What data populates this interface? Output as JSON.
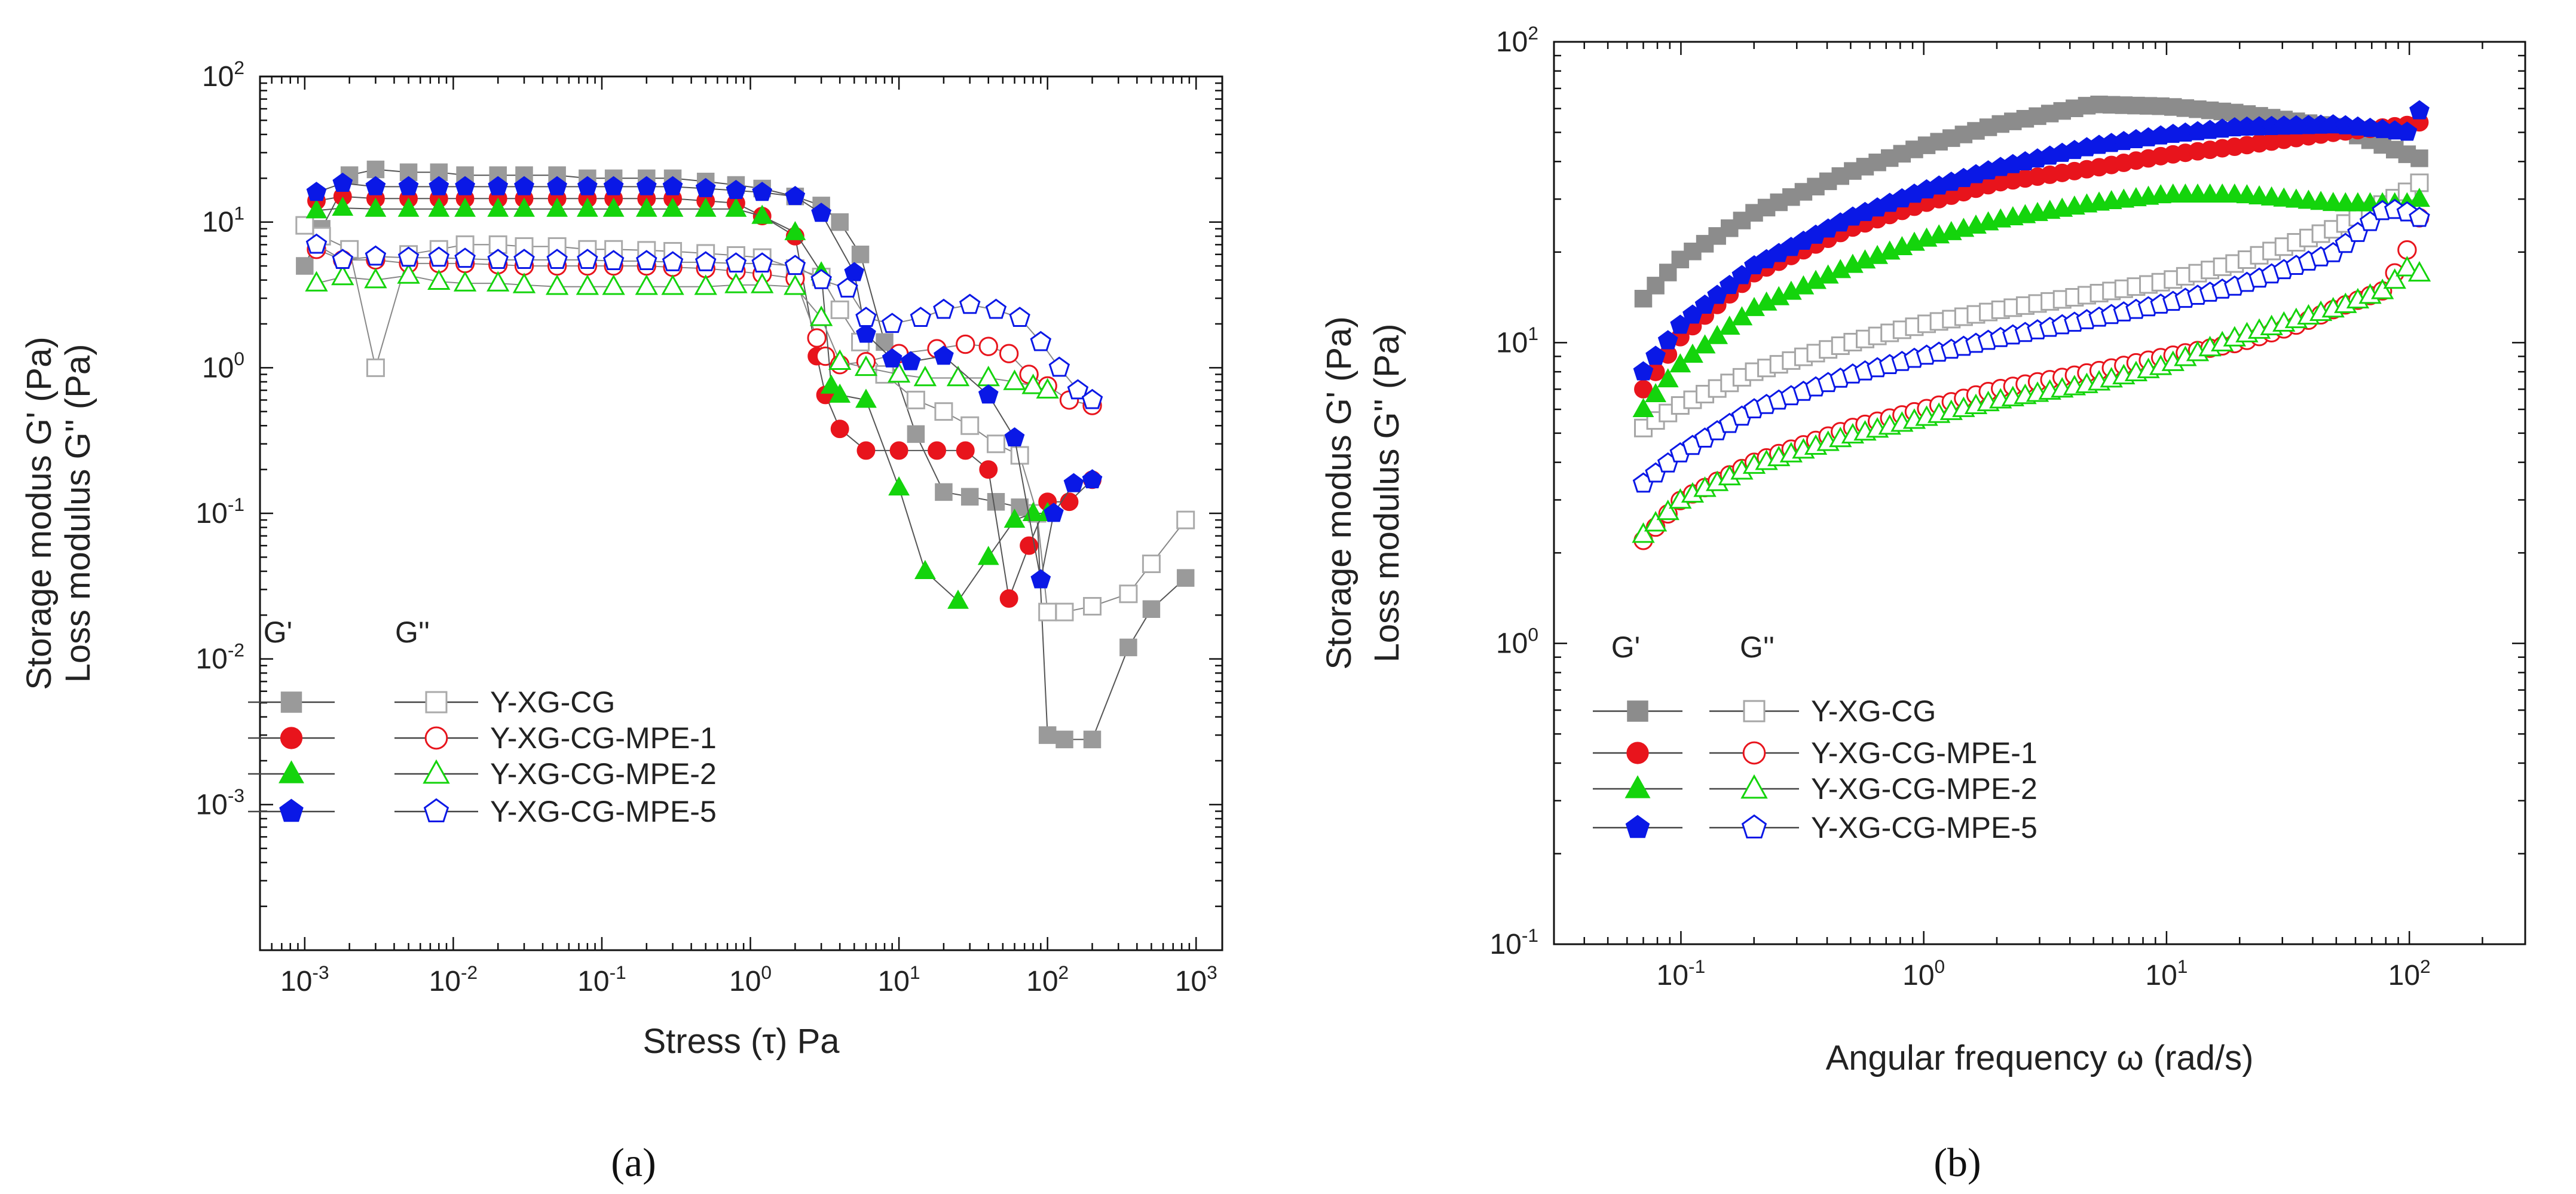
{
  "figure": {
    "panels": [
      "(a)",
      "(b)"
    ]
  },
  "chart_data": [
    {
      "type": "scatter",
      "panel_label": "(a)",
      "xscale": "log",
      "yscale": "log",
      "xlim": [
        0.0005,
        1500
      ],
      "ylim": [
        0.0001,
        100
      ],
      "xlabel": "Stress (τ) Pa",
      "ylabel_line1": "Storage modus G' (Pa)",
      "ylabel_line2": "Loss modulus G'' (Pa)",
      "xticks": [
        0.001,
        0.01,
        0.1,
        1,
        10,
        100,
        1000
      ],
      "xtick_labels": [
        {
          "base": "10",
          "exp": "-3"
        },
        {
          "base": "10",
          "exp": "-2"
        },
        {
          "base": "10",
          "exp": "-1"
        },
        {
          "base": "10",
          "exp": "0"
        },
        {
          "base": "10",
          "exp": "1"
        },
        {
          "base": "10",
          "exp": "2"
        },
        {
          "base": "10",
          "exp": "3"
        }
      ],
      "yticks": [
        0.001,
        0.01,
        0.1,
        1,
        10,
        100
      ],
      "ytick_labels": [
        {
          "base": "10",
          "exp": "-3"
        },
        {
          "base": "10",
          "exp": "-2"
        },
        {
          "base": "10",
          "exp": "-1"
        },
        {
          "base": "10",
          "exp": "0"
        },
        {
          "base": "10",
          "exp": "1"
        },
        {
          "base": "10",
          "exp": "2"
        }
      ],
      "legend": {
        "position": "lower-left",
        "header_g1": "G'",
        "header_g2": "G''",
        "entries": [
          "Y-XG-CG",
          "Y-XG-CG-MPE-1",
          "Y-XG-CG-MPE-2",
          "Y-XG-CG-MPE-5"
        ]
      },
      "series": [
        {
          "name": "Y-XG-CG G'",
          "color": "#9a9a9a",
          "marker": "square",
          "filled": true,
          "x": [
            0.001,
            0.0013,
            0.002,
            0.003,
            0.005,
            0.008,
            0.012,
            0.02,
            0.03,
            0.05,
            0.08,
            0.12,
            0.2,
            0.3,
            0.5,
            0.8,
            1.2,
            2,
            3,
            4,
            5.5,
            8,
            13,
            20,
            30,
            45,
            65,
            85,
            100,
            130,
            200,
            350,
            500,
            850
          ],
          "y": [
            5,
            9,
            21,
            23,
            22,
            22,
            21,
            21,
            21,
            21,
            20,
            20,
            20,
            20,
            19,
            18,
            17,
            15,
            13,
            10,
            6,
            1.5,
            0.35,
            0.14,
            0.13,
            0.12,
            0.11,
            0.1,
            0.003,
            0.0028,
            0.0028,
            0.012,
            0.022,
            0.036
          ]
        },
        {
          "name": "Y-XG-CG G''",
          "color": "#aaaaaa",
          "marker": "square",
          "filled": false,
          "x": [
            0.001,
            0.0013,
            0.002,
            0.003,
            0.005,
            0.008,
            0.012,
            0.02,
            0.03,
            0.05,
            0.08,
            0.12,
            0.2,
            0.3,
            0.5,
            0.8,
            1.2,
            2,
            3,
            4,
            5.5,
            8,
            13,
            20,
            30,
            45,
            65,
            85,
            100,
            130,
            200,
            350,
            500,
            850
          ],
          "y": [
            9.5,
            8,
            6.5,
            1,
            6,
            6.5,
            7,
            7,
            6.8,
            6.8,
            6.5,
            6.5,
            6.4,
            6.3,
            6.1,
            5.9,
            5.7,
            4.8,
            4.2,
            2.5,
            1.5,
            0.9,
            0.6,
            0.5,
            0.4,
            0.3,
            0.25,
            0.1,
            0.021,
            0.021,
            0.023,
            0.028,
            0.045,
            0.09
          ]
        },
        {
          "name": "Y-XG-CG-MPE-1 G'",
          "color": "#e8141c",
          "marker": "circle",
          "filled": true,
          "x": [
            0.0012,
            0.0018,
            0.003,
            0.005,
            0.008,
            0.012,
            0.02,
            0.03,
            0.05,
            0.08,
            0.12,
            0.2,
            0.3,
            0.5,
            0.8,
            1.2,
            2,
            2.8,
            3.2,
            4,
            6,
            10,
            18,
            28,
            40,
            55,
            75,
            100,
            140,
            200
          ],
          "y": [
            14,
            15,
            14.5,
            14.5,
            14.5,
            14.5,
            14.5,
            14.5,
            14.5,
            14.5,
            14.5,
            14.5,
            14.5,
            14,
            13.5,
            11,
            8,
            1.2,
            0.65,
            0.38,
            0.27,
            0.27,
            0.27,
            0.27,
            0.2,
            0.026,
            0.06,
            0.12,
            0.12,
            0.17
          ]
        },
        {
          "name": "Y-XG-CG-MPE-1 G''",
          "color": "#e8141c",
          "marker": "circle",
          "filled": false,
          "x": [
            0.0012,
            0.0018,
            0.003,
            0.005,
            0.008,
            0.012,
            0.02,
            0.03,
            0.05,
            0.08,
            0.12,
            0.2,
            0.3,
            0.5,
            0.8,
            1.2,
            2,
            2.8,
            3.2,
            4,
            6,
            10,
            18,
            28,
            40,
            55,
            75,
            100,
            140,
            200
          ],
          "y": [
            6.5,
            5.5,
            5.5,
            5.2,
            5.2,
            5.2,
            5.1,
            5,
            5,
            5,
            5,
            5,
            4.9,
            4.8,
            4.6,
            4.4,
            4.1,
            1.6,
            1.2,
            1.05,
            1.1,
            1.25,
            1.35,
            1.45,
            1.4,
            1.25,
            0.9,
            0.75,
            0.6,
            0.55
          ]
        },
        {
          "name": "Y-XG-CG-MPE-2 G'",
          "color": "#14d40c",
          "marker": "triangle",
          "filled": true,
          "x": [
            0.0012,
            0.0018,
            0.003,
            0.005,
            0.008,
            0.012,
            0.02,
            0.03,
            0.05,
            0.08,
            0.12,
            0.2,
            0.3,
            0.5,
            0.8,
            1.2,
            2,
            3,
            3.5,
            4,
            6,
            10,
            15,
            25,
            40,
            60,
            80,
            100
          ],
          "y": [
            12,
            12.5,
            12.3,
            12.3,
            12.3,
            12.3,
            12.3,
            12.3,
            12.3,
            12.3,
            12.3,
            12.3,
            12.3,
            12.3,
            12.3,
            11,
            8.5,
            4.5,
            0.75,
            0.65,
            0.6,
            0.15,
            0.04,
            0.025,
            0.05,
            0.09,
            0.1,
            0.1
          ]
        },
        {
          "name": "Y-XG-CG-MPE-2 G''",
          "color": "#14d40c",
          "marker": "triangle",
          "filled": false,
          "x": [
            0.0012,
            0.0018,
            0.003,
            0.005,
            0.008,
            0.012,
            0.02,
            0.03,
            0.05,
            0.08,
            0.12,
            0.2,
            0.3,
            0.5,
            0.8,
            1.2,
            2,
            3,
            4,
            6,
            10,
            15,
            25,
            40,
            60,
            80,
            100
          ],
          "y": [
            3.8,
            4.2,
            4,
            4.3,
            3.9,
            3.8,
            3.8,
            3.7,
            3.6,
            3.6,
            3.6,
            3.6,
            3.6,
            3.6,
            3.7,
            3.7,
            3.6,
            2.2,
            1.1,
            1,
            0.9,
            0.85,
            0.85,
            0.85,
            0.8,
            0.75,
            0.7
          ]
        },
        {
          "name": "Y-XG-CG-MPE-5 G'",
          "color": "#0a18e6",
          "marker": "pentagon",
          "filled": true,
          "x": [
            0.0012,
            0.0018,
            0.003,
            0.005,
            0.008,
            0.012,
            0.02,
            0.03,
            0.05,
            0.08,
            0.12,
            0.2,
            0.3,
            0.5,
            0.8,
            1.2,
            2,
            3,
            5,
            6,
            9,
            12,
            20,
            40,
            60,
            90,
            110,
            150,
            200
          ],
          "y": [
            16,
            18.5,
            17.5,
            17.5,
            17.5,
            17.5,
            17.5,
            17.5,
            17.5,
            17.5,
            17.5,
            17.5,
            17.5,
            17,
            16.5,
            16,
            15,
            11.5,
            4.5,
            1.7,
            1.15,
            1.1,
            1.2,
            0.65,
            0.33,
            0.035,
            0.1,
            0.16,
            0.17
          ]
        },
        {
          "name": "Y-XG-CG-MPE-5 G''",
          "color": "#0a18e6",
          "marker": "pentagon",
          "filled": false,
          "x": [
            0.0012,
            0.0018,
            0.003,
            0.005,
            0.008,
            0.012,
            0.02,
            0.03,
            0.05,
            0.08,
            0.12,
            0.2,
            0.3,
            0.5,
            0.8,
            1.2,
            2,
            3,
            4.5,
            6,
            9,
            14,
            20,
            30,
            45,
            65,
            90,
            120,
            160,
            200
          ],
          "y": [
            7,
            5.5,
            5.8,
            5.7,
            5.7,
            5.6,
            5.5,
            5.5,
            5.5,
            5.5,
            5.4,
            5.4,
            5.3,
            5.3,
            5.2,
            5.2,
            5,
            4,
            3.5,
            2.2,
            2,
            2.2,
            2.5,
            2.7,
            2.5,
            2.2,
            1.5,
            1,
            0.7,
            0.6
          ]
        }
      ]
    },
    {
      "type": "scatter",
      "panel_label": "(b)",
      "xscale": "log",
      "yscale": "log",
      "xlim": [
        0.03,
        300
      ],
      "ylim": [
        0.1,
        100
      ],
      "xlabel": "Angular frequency ω (rad/s)",
      "ylabel_line1": "Storage modus G' (Pa)",
      "ylabel_line2": "Loss modulus G'' (Pa)",
      "xticks": [
        0.1,
        1,
        10,
        100
      ],
      "xtick_labels": [
        {
          "base": "10",
          "exp": "-1"
        },
        {
          "base": "10",
          "exp": "0"
        },
        {
          "base": "10",
          "exp": "1"
        },
        {
          "base": "10",
          "exp": "2"
        }
      ],
      "yticks": [
        0.1,
        1,
        10,
        100
      ],
      "ytick_labels": [
        {
          "base": "10",
          "exp": "-1"
        },
        {
          "base": "10",
          "exp": "0"
        },
        {
          "base": "10",
          "exp": "1"
        },
        {
          "base": "10",
          "exp": "2"
        }
      ],
      "legend": {
        "position": "lower-left",
        "header_g1": "G'",
        "header_g2": "G''",
        "entries": [
          "Y-XG-CG",
          "Y-XG-CG-MPE-1",
          "Y-XG-CG-MPE-2",
          "Y-XG-CG-MPE-5"
        ]
      },
      "series": [
        {
          "name": "Y-XG-CG G'",
          "color": "#8c8c8c",
          "marker": "square",
          "filled": true,
          "dense": true,
          "x": [
            0.07,
            0.1,
            0.2,
            0.5,
            1,
            2,
            5,
            10,
            20,
            50,
            100,
            110
          ],
          "y": [
            14,
            19,
            27,
            37,
            45,
            53,
            62,
            61,
            58,
            52,
            42,
            41
          ]
        },
        {
          "name": "Y-XG-CG G''",
          "color": "#a6a6a6",
          "marker": "square",
          "filled": false,
          "dense": true,
          "x": [
            0.07,
            0.1,
            0.2,
            0.5,
            1,
            2,
            5,
            10,
            20,
            50,
            100,
            110
          ],
          "y": [
            5.2,
            6.2,
            8,
            10,
            11.5,
            12.8,
            14.5,
            16,
            18.5,
            24,
            32,
            34
          ]
        },
        {
          "name": "Y-XG-CG-MPE-1 G'",
          "color": "#e8141c",
          "marker": "circle",
          "filled": true,
          "dense": true,
          "x": [
            0.07,
            0.1,
            0.2,
            0.5,
            1,
            2,
            5,
            10,
            20,
            50,
            100,
            110
          ],
          "y": [
            7,
            10.5,
            17,
            24,
            29,
            34,
            38,
            42,
            45,
            50,
            53,
            54
          ]
        },
        {
          "name": "Y-XG-CG-MPE-1 G''",
          "color": "#e8141c",
          "marker": "circle",
          "filled": false,
          "dense": true,
          "x": [
            0.07,
            0.1,
            0.2,
            0.5,
            1,
            2,
            5,
            10,
            20,
            35,
            50,
            80,
            100,
            110
          ],
          "y": [
            2.2,
            3,
            4,
            5.2,
            6,
            7,
            8,
            9,
            10,
            11.5,
            13,
            15,
            21,
            26
          ]
        },
        {
          "name": "Y-XG-CG-MPE-2 G'",
          "color": "#14d40c",
          "marker": "triangle",
          "filled": true,
          "dense": true,
          "x": [
            0.07,
            0.1,
            0.2,
            0.5,
            1,
            2,
            5,
            10,
            20,
            50,
            100,
            110
          ],
          "y": [
            6,
            8.5,
            13,
            18,
            22,
            25.5,
            29,
            31,
            31,
            29,
            29,
            30
          ]
        },
        {
          "name": "Y-XG-CG-MPE-2 G''",
          "color": "#14d40c",
          "marker": "triangle",
          "filled": false,
          "dense": true,
          "x": [
            0.07,
            0.1,
            0.2,
            0.5,
            1,
            2,
            5,
            10,
            20,
            50,
            80,
            100,
            110
          ],
          "y": [
            2.3,
            3,
            3.9,
            4.9,
            5.6,
            6.4,
            7.3,
            8.4,
            10.5,
            13,
            15,
            18,
            17
          ]
        },
        {
          "name": "Y-XG-CG-MPE-5 G'",
          "color": "#0a18e6",
          "marker": "pentagon",
          "filled": true,
          "dense": true,
          "x": [
            0.07,
            0.1,
            0.2,
            0.5,
            1,
            2,
            5,
            10,
            20,
            50,
            100,
            110
          ],
          "y": [
            8,
            11.5,
            18,
            26,
            32,
            38,
            45,
            49,
            52,
            53,
            50,
            59
          ]
        },
        {
          "name": "Y-XG-CG-MPE-5 G''",
          "color": "#0a18e6",
          "marker": "pentagon",
          "filled": false,
          "dense": true,
          "x": [
            0.07,
            0.1,
            0.2,
            0.5,
            1,
            2,
            5,
            10,
            20,
            50,
            80,
            100,
            110
          ],
          "y": [
            3.4,
            4.3,
            6,
            7.8,
            9,
            10.3,
            12,
            13.5,
            15.5,
            20,
            28,
            27,
            26
          ]
        }
      ]
    }
  ]
}
